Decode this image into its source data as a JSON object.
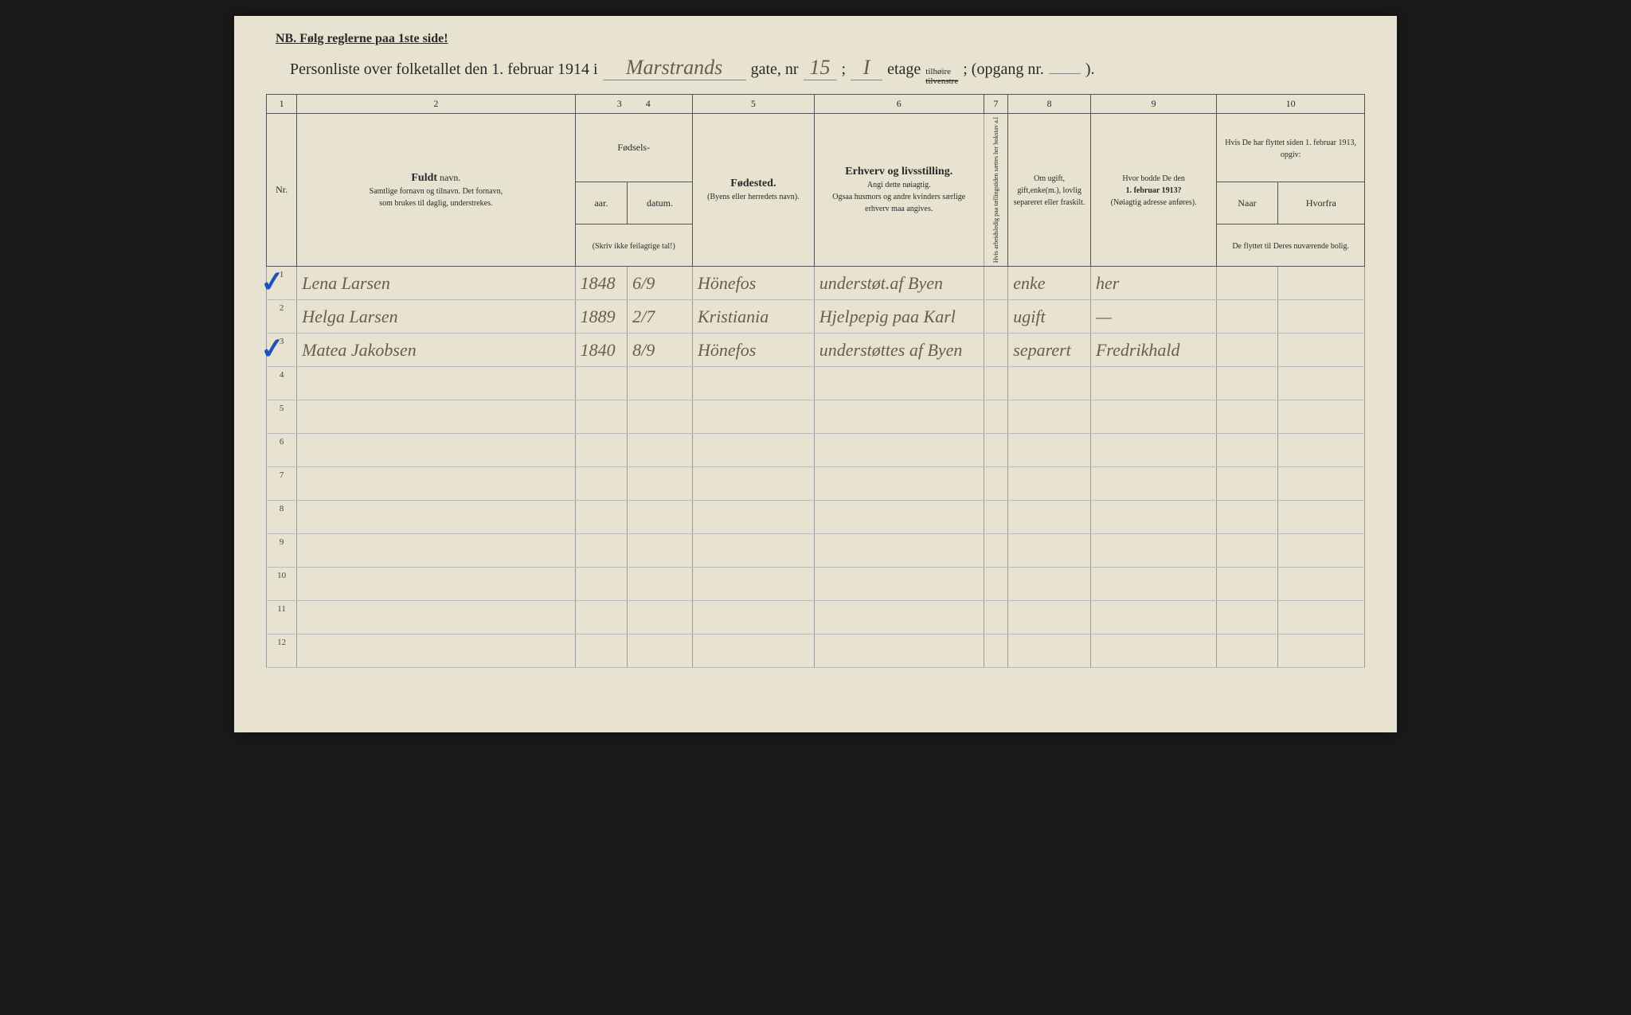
{
  "header": {
    "nb_text": "NB.  Følg reglerne paa 1ste side!",
    "title_prefix": "Personliste over folketallet den 1. februar 1914 i",
    "street_name": "Marstrands",
    "gate_label": "gate, nr",
    "house_nr": "15",
    "semicolon1": ";",
    "floor": "I",
    "etage_label": "etage",
    "side_top": "tilhøire",
    "side_bottom": "tilvenstre",
    "opgang_label": "; (opgang nr.",
    "opgang_nr": "",
    "closing": ")."
  },
  "column_numbers": [
    "1",
    "2",
    "3",
    "4",
    "5",
    "6",
    "7",
    "8",
    "9",
    "10"
  ],
  "columns": {
    "nr": "Nr.",
    "fuldt_navn_bold": "Fuldt",
    "fuldt_navn_rest": " navn.",
    "navn_sub1": "Samtlige fornavn og tilnavn.  Det fornavn,",
    "navn_sub2": "som brukes til daglig, understrekes.",
    "fodsels": "Fødsels-",
    "aar": "aar.",
    "datum": "datum.",
    "skriv_note": "(Skriv ikke feilagtige tal!)",
    "fodested": "Fødested.",
    "fodested_sub": "(Byens eller herredets navn).",
    "erhverv": "Erhverv og livsstilling.",
    "erhverv_sub1": "Angi dette nøiagtig.",
    "erhverv_sub2": "Ogsaa husmors og andre kvinders særlige erhverv maa angives.",
    "col7_text": "Hvis arbeidsledig paa tællingstiden sættes her bokstav a.l",
    "col8": "Om ugift, gift,enke(m.), lovlig separeret eller fraskilt.",
    "col9": "Hvor bodde De den",
    "col9_bold": "1. februar 1913?",
    "col9_sub": "(Nøiagtig adresse anføres).",
    "col10_top": "Hvis De har flyttet siden 1. februar 1913, opgiv:",
    "col10_naar": "Naar",
    "col10_hvorfra": "Hvorfra",
    "col10_bottom": "De flyttet til Deres nuværende bolig."
  },
  "rows": [
    {
      "nr": "1",
      "check": true,
      "navn": "Lena Larsen",
      "aar": "1848",
      "datum": "6/9",
      "fodested": "Hönefos",
      "erhverv": "understøt.af Byen",
      "col7": "",
      "col8": "enke",
      "col9": "her",
      "naar": "",
      "hvorfra": ""
    },
    {
      "nr": "2",
      "check": false,
      "navn": "Helga Larsen",
      "aar": "1889",
      "datum": "2/7",
      "fodested": "Kristiania",
      "erhverv": "Hjelpepig paa Karl",
      "col7": "",
      "col8": "ugift",
      "col9": "—",
      "naar": "",
      "hvorfra": ""
    },
    {
      "nr": "3",
      "check": true,
      "navn": "Matea Jakobsen",
      "aar": "1840",
      "datum": "8/9",
      "fodested": "Hönefos",
      "erhverv": "understøttes af Byen",
      "col7": "",
      "col8": "separert",
      "col9": "Fredrikhald",
      "naar": "",
      "hvorfra": ""
    },
    {
      "nr": "4",
      "check": false,
      "navn": "",
      "aar": "",
      "datum": "",
      "fodested": "",
      "erhverv": "",
      "col7": "",
      "col8": "",
      "col9": "",
      "naar": "",
      "hvorfra": ""
    },
    {
      "nr": "5",
      "check": false,
      "navn": "",
      "aar": "",
      "datum": "",
      "fodested": "",
      "erhverv": "",
      "col7": "",
      "col8": "",
      "col9": "",
      "naar": "",
      "hvorfra": ""
    },
    {
      "nr": "6",
      "check": false,
      "navn": "",
      "aar": "",
      "datum": "",
      "fodested": "",
      "erhverv": "",
      "col7": "",
      "col8": "",
      "col9": "",
      "naar": "",
      "hvorfra": ""
    },
    {
      "nr": "7",
      "check": false,
      "navn": "",
      "aar": "",
      "datum": "",
      "fodested": "",
      "erhverv": "",
      "col7": "",
      "col8": "",
      "col9": "",
      "naar": "",
      "hvorfra": ""
    },
    {
      "nr": "8",
      "check": false,
      "navn": "",
      "aar": "",
      "datum": "",
      "fodested": "",
      "erhverv": "",
      "col7": "",
      "col8": "",
      "col9": "",
      "naar": "",
      "hvorfra": ""
    },
    {
      "nr": "9",
      "check": false,
      "navn": "",
      "aar": "",
      "datum": "",
      "fodested": "",
      "erhverv": "",
      "col7": "",
      "col8": "",
      "col9": "",
      "naar": "",
      "hvorfra": ""
    },
    {
      "nr": "10",
      "check": false,
      "navn": "",
      "aar": "",
      "datum": "",
      "fodested": "",
      "erhverv": "",
      "col7": "",
      "col8": "",
      "col9": "",
      "naar": "",
      "hvorfra": ""
    },
    {
      "nr": "11",
      "check": false,
      "navn": "",
      "aar": "",
      "datum": "",
      "fodested": "",
      "erhverv": "",
      "col7": "",
      "col8": "",
      "col9": "",
      "naar": "",
      "hvorfra": ""
    },
    {
      "nr": "12",
      "check": false,
      "navn": "",
      "aar": "",
      "datum": "",
      "fodested": "",
      "erhverv": "",
      "col7": "",
      "col8": "",
      "col9": "",
      "naar": "",
      "hvorfra": ""
    }
  ],
  "styling": {
    "paper_bg": "#e8e2d0",
    "print_text": "#2a2a2a",
    "handwriting": "#6b5d4a",
    "checkmark_color": "#2050c0",
    "border_color": "#555",
    "light_border": "#999"
  }
}
